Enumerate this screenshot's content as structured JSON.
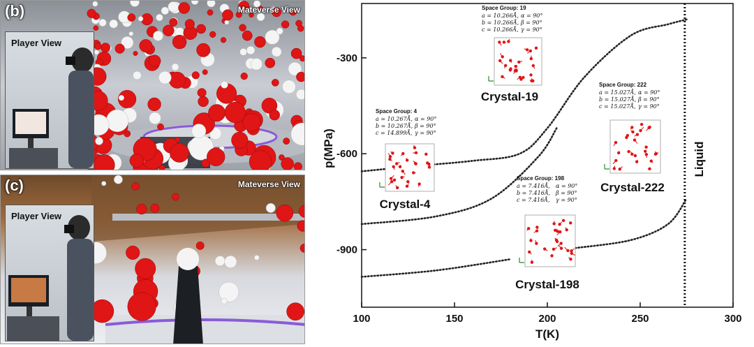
{
  "panels": {
    "b": {
      "label": "(b)",
      "mateverse": "Mateverse View",
      "player": "Player View"
    },
    "c": {
      "label": "(c)",
      "mateverse": "Mateverse View",
      "player": "Player View"
    }
  },
  "colors": {
    "oxygen": "#e01515",
    "hydrogen": "#f4f4f4",
    "curve": "#222222"
  },
  "chart_data": {
    "type": "line",
    "xlabel": "T(K)",
    "ylabel": "p(MPa)",
    "xlim": [
      100,
      300
    ],
    "ylim": [
      -1080,
      -130
    ],
    "x_ticks": [
      "100",
      "150",
      "200",
      "250",
      "300"
    ],
    "y_ticks": [
      "-300",
      "-600",
      "-900"
    ],
    "x_tick_values": [
      100,
      150,
      200,
      250,
      300
    ],
    "y_tick_values": [
      -300,
      -600,
      -900
    ],
    "liquid_line": {
      "x": 274,
      "label": "Liquid"
    },
    "series": [
      {
        "points": [
          [
            100,
            -655
          ],
          [
            130,
            -638
          ],
          [
            160,
            -622
          ],
          [
            185,
            -600
          ],
          [
            200,
            -520
          ],
          [
            220,
            -360
          ],
          [
            245,
            -230
          ],
          [
            265,
            -195
          ],
          [
            275,
            -180
          ]
        ]
      },
      {
        "points": [
          [
            100,
            -820
          ],
          [
            140,
            -796
          ],
          [
            170,
            -740
          ],
          [
            195,
            -610
          ],
          [
            205,
            -520
          ]
        ]
      },
      {
        "points": [
          [
            100,
            -985
          ],
          [
            140,
            -965
          ],
          [
            180,
            -930
          ]
        ]
      },
      {
        "points": [
          [
            215,
            -895
          ],
          [
            245,
            -870
          ],
          [
            265,
            -820
          ],
          [
            275,
            -740
          ]
        ]
      }
    ],
    "crystals": [
      {
        "name": "Crystal-19",
        "space_group": "Space Group: 19",
        "params": [
          "𝑎 = 10.266Å,",
          "𝛼 = 90°",
          "𝑏 = 10.266Å,",
          "𝛽 = 90°",
          "𝑐 = 10.266Å,",
          "𝛾 = 90°"
        ]
      },
      {
        "name": "Crystal-4",
        "space_group": "Space Group: 4",
        "params": [
          "𝑎 = 10.267Å,",
          "𝛼 = 90°",
          "𝑏 = 10.267Å,",
          "𝛽 = 90°",
          "𝑐 = 14.899Å,",
          "𝛾 = 90°"
        ]
      },
      {
        "name": "Crystal-222",
        "space_group": "Space Group: 222",
        "params": [
          "𝑎 = 15.027Å,",
          "𝛼 = 90°",
          "𝑏 = 15.027Å,",
          "𝛽 = 90°",
          "𝑐 = 15.027Å,",
          "𝛾 = 90°"
        ]
      },
      {
        "name": "Crystal-198",
        "space_group": "Space Group: 198",
        "params": [
          "𝑎 = 7.416Å,",
          "𝛼 = 90°",
          "𝑏 = 7.416Å,",
          "𝛽 = 90°",
          "𝑐 = 7.416Å,",
          "𝛾 = 90°"
        ]
      }
    ]
  }
}
